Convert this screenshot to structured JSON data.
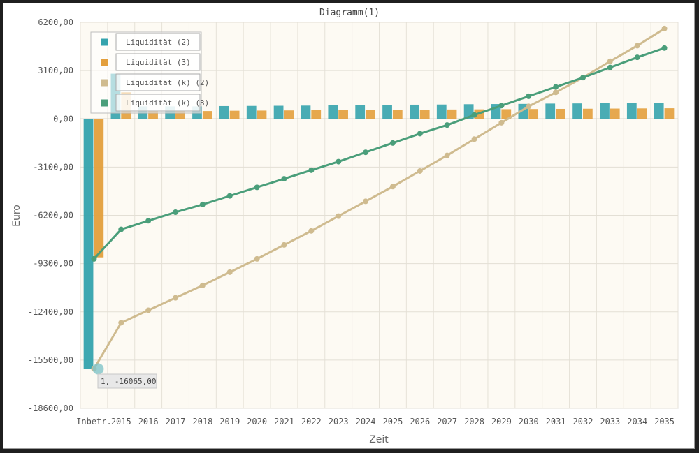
{
  "chart_data": {
    "type": "bar+line",
    "title": "Diagramm(1)",
    "xlabel": "Zeit",
    "ylabel": "Euro",
    "ylim": [
      -18600,
      6200
    ],
    "yticks": [
      6200,
      3100,
      0,
      -3100,
      -6200,
      -9300,
      -12400,
      -15500,
      -18600
    ],
    "ytick_labels": [
      "6200,00",
      "3100,00",
      "0,00",
      "-3100,00",
      "-6200,00",
      "-9300,00",
      "-12400,00",
      "-15500,00",
      "-18600,00"
    ],
    "categories": [
      "Inbetr.",
      "2015",
      "2016",
      "2017",
      "2018",
      "2019",
      "2020",
      "2021",
      "2022",
      "2023",
      "2024",
      "2025",
      "2026",
      "2027",
      "2028",
      "2029",
      "2030",
      "2031",
      "2032",
      "2033",
      "2034",
      "2035"
    ],
    "series": [
      {
        "name": "Liquidität (2)",
        "kind": "bar",
        "color": "#35a3ad",
        "values": [
          -16065,
          2900,
          800,
          800,
          800,
          820,
          830,
          840,
          850,
          870,
          880,
          900,
          910,
          920,
          940,
          950,
          960,
          980,
          990,
          1000,
          1020,
          1040
        ]
      },
      {
        "name": "Liquidität (3)",
        "kind": "bar",
        "color": "#e39f3c",
        "values": [
          -8900,
          1700,
          500,
          500,
          500,
          520,
          530,
          540,
          550,
          560,
          570,
          580,
          590,
          600,
          610,
          620,
          630,
          640,
          650,
          660,
          670,
          680
        ]
      },
      {
        "name": "Liquidität (k) (2)",
        "kind": "line",
        "color": "#cfbb8f",
        "values": [
          -16065,
          -13100,
          -12300,
          -11500,
          -10700,
          -9850,
          -9000,
          -8100,
          -7200,
          -6250,
          -5300,
          -4350,
          -3350,
          -2350,
          -1300,
          -250,
          800,
          1700,
          2650,
          3700,
          4700,
          5800
        ]
      },
      {
        "name": "Liquidität (k) (3)",
        "kind": "line",
        "color": "#4a9e7a",
        "values": [
          -9000,
          -7100,
          -6550,
          -6000,
          -5500,
          -4950,
          -4400,
          -3850,
          -3300,
          -2750,
          -2150,
          -1550,
          -950,
          -400,
          250,
          850,
          1450,
          2050,
          2650,
          3300,
          3950,
          4550
        ]
      }
    ],
    "tooltip": "1, -16065,00",
    "legend_position": "top-left"
  }
}
